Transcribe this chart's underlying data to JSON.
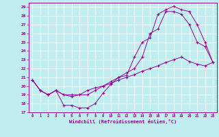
{
  "xlabel": "Windchill (Refroidissement éolien,°C)",
  "bg_color": "#c0eef0",
  "grid_color": "#ffffff",
  "line_color": "#990099",
  "xlim": [
    -0.5,
    23.5
  ],
  "ylim": [
    17,
    29.5
  ],
  "xticks": [
    0,
    1,
    2,
    3,
    4,
    5,
    6,
    7,
    8,
    9,
    10,
    11,
    12,
    13,
    14,
    15,
    16,
    17,
    18,
    19,
    20,
    21,
    22,
    23
  ],
  "yticks": [
    17,
    18,
    19,
    20,
    21,
    22,
    23,
    24,
    25,
    26,
    27,
    28,
    29
  ],
  "series1_x": [
    0,
    1,
    2,
    3,
    4,
    5,
    6,
    7,
    8,
    9,
    10,
    11,
    12,
    13,
    14,
    15,
    16,
    17,
    18,
    19,
    20,
    21,
    22,
    23
  ],
  "series1_y": [
    20.7,
    19.5,
    19.0,
    19.5,
    17.8,
    17.8,
    17.5,
    17.5,
    18.0,
    19.2,
    20.2,
    21.0,
    21.2,
    23.3,
    25.0,
    25.5,
    28.2,
    28.7,
    29.1,
    28.7,
    28.5,
    27.0,
    25.0,
    22.7
  ],
  "series2_x": [
    0,
    1,
    2,
    3,
    4,
    5,
    6,
    7,
    8,
    9,
    10,
    11,
    12,
    13,
    14,
    15,
    16,
    17,
    18,
    19,
    20,
    21,
    22,
    23
  ],
  "series2_y": [
    20.7,
    19.5,
    19.0,
    19.5,
    19.0,
    19.0,
    19.0,
    19.5,
    19.8,
    20.0,
    20.3,
    20.7,
    21.0,
    21.3,
    21.7,
    22.0,
    22.3,
    22.7,
    23.0,
    23.3,
    22.8,
    22.5,
    22.3,
    22.7
  ],
  "series3_x": [
    0,
    1,
    2,
    3,
    4,
    5,
    6,
    7,
    8,
    9,
    10,
    11,
    12,
    13,
    14,
    15,
    16,
    17,
    18,
    19,
    20,
    21,
    22,
    23
  ],
  "series3_y": [
    20.7,
    19.5,
    19.0,
    19.5,
    19.0,
    18.8,
    19.0,
    19.0,
    19.5,
    20.0,
    20.5,
    21.0,
    21.5,
    22.0,
    23.3,
    26.0,
    26.5,
    28.5,
    28.5,
    28.2,
    27.0,
    25.0,
    24.5,
    22.7
  ]
}
